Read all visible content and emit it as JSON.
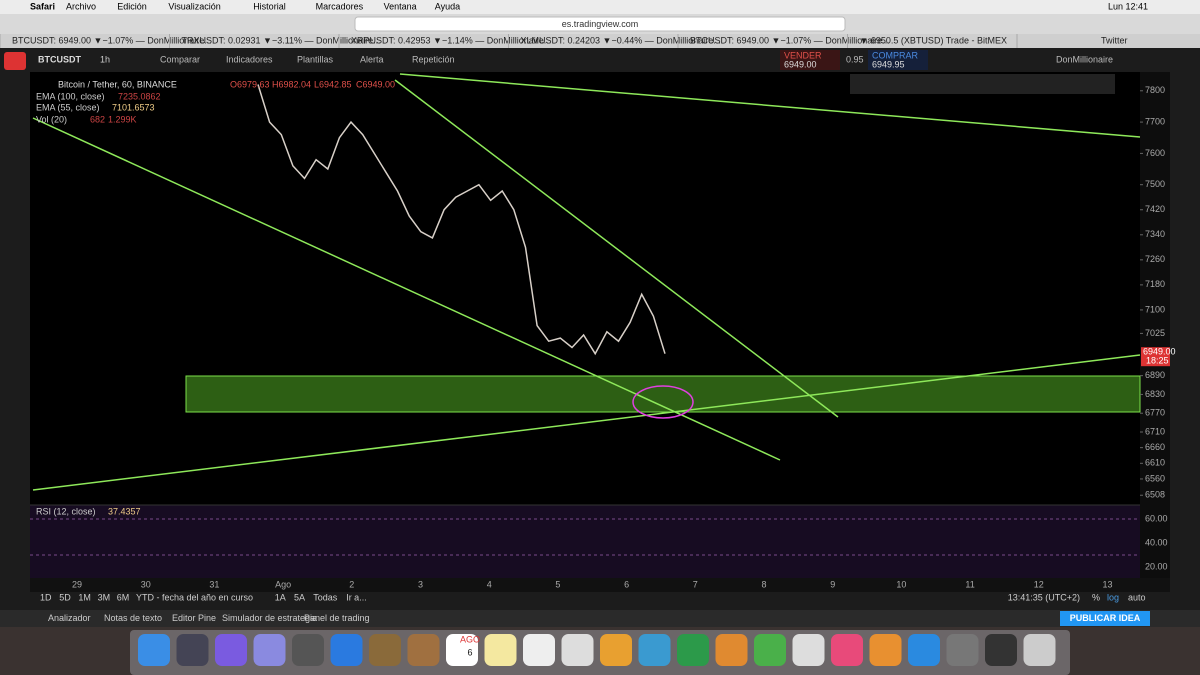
{
  "menubar": {
    "app": "Safari",
    "items": [
      "Archivo",
      "Edición",
      "Visualización",
      "Historial",
      "Marcadores",
      "Ventana",
      "Ayuda"
    ],
    "clock": "Lun 12:41"
  },
  "url": "es.tradingview.com",
  "tabs": [
    "BTCUSDT: 6949.00 ▼−1.07% — DonMillionaire...",
    "TRXUSDT: 0.02931 ▼−3.11% — DonMillionaire...",
    "XRPUSDT: 0.42953 ▼−1.14% — DonMillionaire...",
    "XLMUSDT: 0.24203 ▼−0.44% — DonMillionaire...",
    "BTCUSDT: 6949.00 ▼−1.07% — DonMillionaire...",
    "▼ 6950.5 (XBTUSD) Trade - BitMEX",
    "Twitter"
  ],
  "toolbar": {
    "symbol": "BTCUSDT",
    "interval": "1h",
    "buttons": [
      "Comparar",
      "Indicadores",
      "Plantillas",
      "Alerta",
      "Repetición"
    ],
    "sell_label": "VENDER",
    "sell_price": "6949.00",
    "spread": "0.95",
    "buy_label": "COMPRAR",
    "buy_price": "6949.95",
    "user": "DonMillionaire"
  },
  "legend": {
    "title": "Bitcoin / Tether, 60, BINANCE",
    "ohlc": [
      "O6979.63",
      "H6982.04",
      "L6942.85",
      "C6949.00"
    ],
    "ema100": {
      "name": "EMA (100, close)",
      "value": "7235.0862"
    },
    "ema55": {
      "name": "EMA (55, close)",
      "value": "7101.6573"
    },
    "vol": {
      "name": "Vol (20)",
      "values": [
        "682",
        "1.299K"
      ]
    }
  },
  "chart": {
    "ylim": [
      6480,
      7860
    ],
    "yticks": [
      7800,
      7700,
      7600,
      7500,
      7420,
      7340,
      7260,
      7180,
      7100,
      7025,
      6890,
      6830,
      6770,
      6710,
      6660,
      6610,
      6560,
      6508
    ],
    "time_labels": [
      "29",
      "30",
      "31",
      "Ago",
      "2",
      "3",
      "4",
      "5",
      "6",
      "7",
      "8",
      "9",
      "10",
      "11",
      "12",
      "13"
    ],
    "price_path": [
      7820,
      7700,
      7660,
      7560,
      7520,
      7580,
      7550,
      7650,
      7700,
      7660,
      7600,
      7540,
      7480,
      7400,
      7350,
      7330,
      7420,
      7460,
      7480,
      7500,
      7450,
      7480,
      7420,
      7300,
      7050,
      7000,
      7010,
      6980,
      7020,
      6960,
      7030,
      7000,
      7060,
      7150,
      7080,
      6960
    ],
    "last_price": "6949.00",
    "countdown": "18:25",
    "rsi": {
      "name": "RSI (12, close)",
      "value": "37.4357",
      "labels": [
        "60.00",
        "40.00",
        "20.00"
      ]
    }
  },
  "bottom": {
    "ranges": [
      "1D",
      "5D",
      "1M",
      "3M",
      "6M",
      "YTD - fecha del año en curso",
      "1A",
      "5A",
      "Todas",
      "Ir a..."
    ],
    "time": "13:41:35 (UTC+2)",
    "scale": [
      "%",
      "log",
      "auto"
    ],
    "tabs": [
      "Analizador",
      "Notas de texto",
      "Editor Pine",
      "Simulador de estrategia",
      "Panel de trading"
    ],
    "publish": "PUBLICAR IDEA"
  },
  "dock": {
    "month": "AGO",
    "day": "6"
  }
}
